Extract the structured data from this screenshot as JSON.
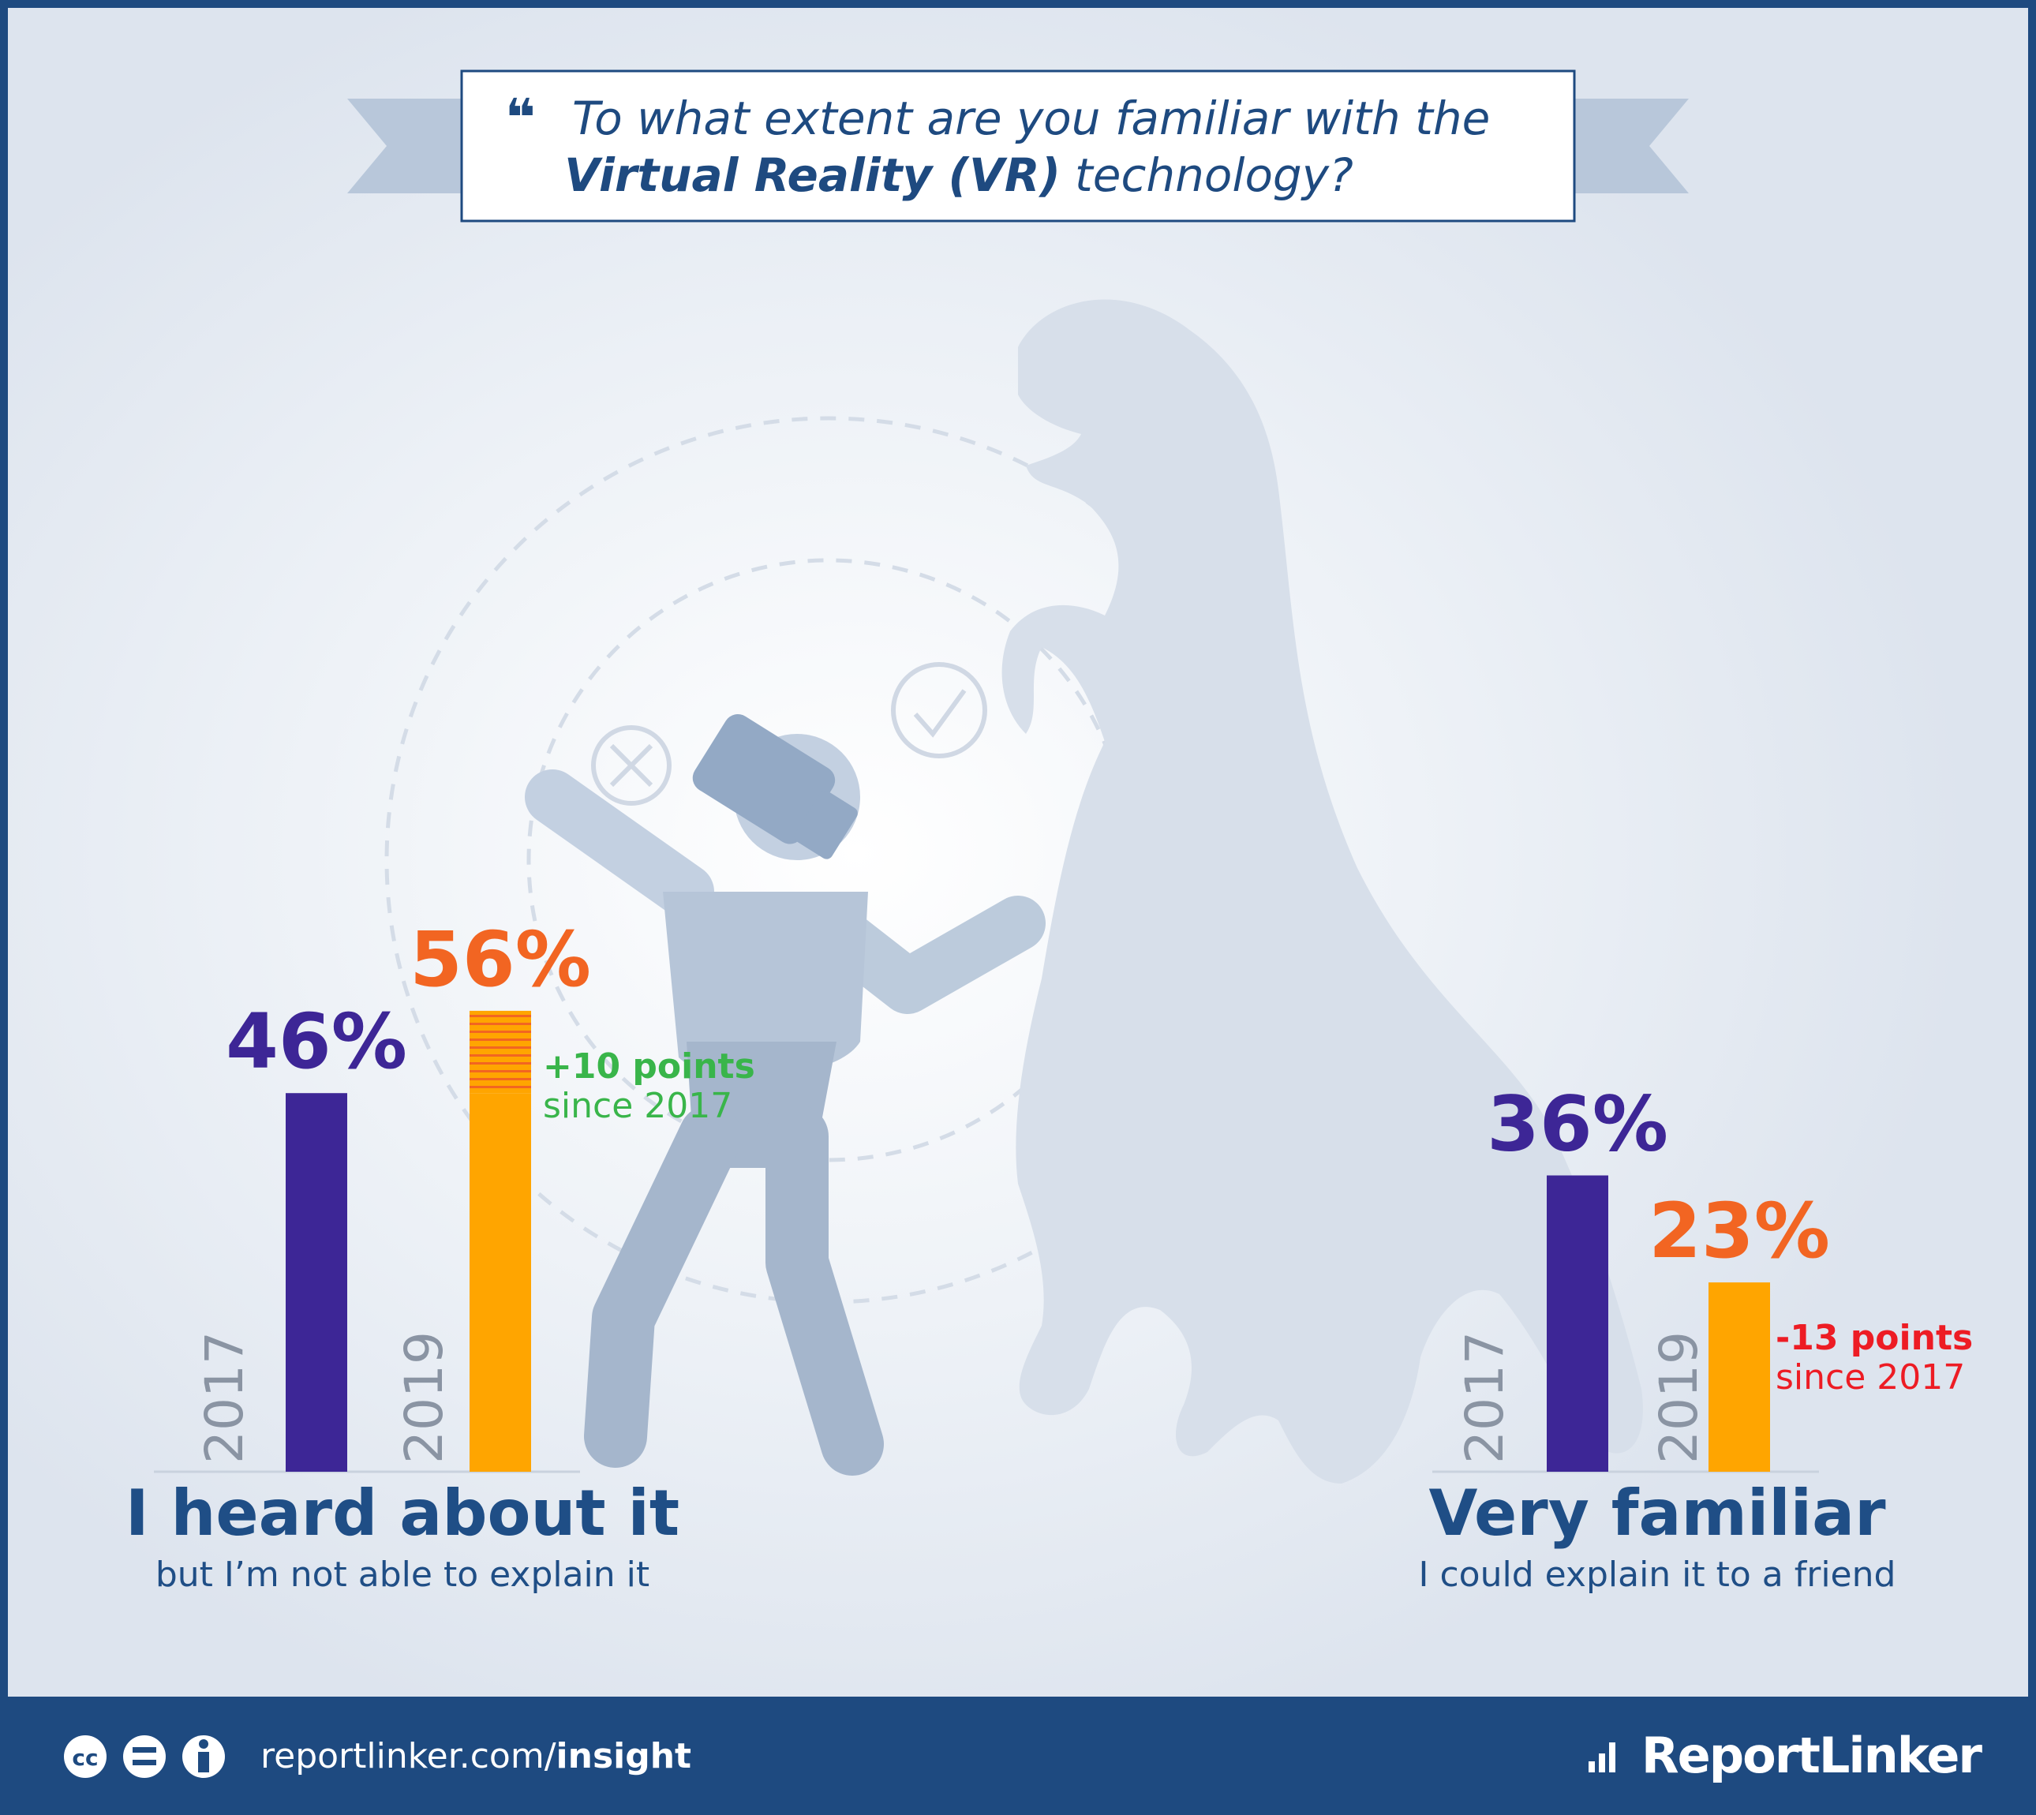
{
  "header": {
    "question_part1": "To what extent are you familiar with the",
    "question_bold": "Virtual Reality (VR)",
    "question_part2": "technology?"
  },
  "footer": {
    "url_plain": "reportlinker.com/",
    "url_bold": "insight",
    "brand": "ReportLinker",
    "license_icons": [
      "cc-icon",
      "no-derivatives-icon",
      "attribution-icon"
    ]
  },
  "colors": {
    "frame": "#1e4a80",
    "series_2017": "#3d2696",
    "series_2019": "#ffa500",
    "label_2019": "#f26522",
    "increase": "#39b54a",
    "decrease": "#ed1c24",
    "category_title": "#1f4e86",
    "background": "#e3e9f1"
  },
  "chart_data": {
    "type": "bar",
    "ylim": [
      0,
      100
    ],
    "series_names": [
      "2017",
      "2019"
    ],
    "groups": [
      {
        "title": "I heard about it",
        "subtitle": "but I’m not able to explain it",
        "bars": [
          {
            "year": "2017",
            "value": 46,
            "label": "46%"
          },
          {
            "year": "2019",
            "value": 56,
            "label": "56%"
          }
        ],
        "change": {
          "points": "+10 points",
          "since": "since 2017",
          "direction": "up"
        }
      },
      {
        "title": "Very familiar",
        "subtitle": "I could explain it to a friend",
        "bars": [
          {
            "year": "2017",
            "value": 36,
            "label": "36%"
          },
          {
            "year": "2019",
            "value": 23,
            "label": "23%"
          }
        ],
        "change": {
          "points": "-13 points",
          "since": "since 2017",
          "direction": "down"
        }
      }
    ]
  }
}
